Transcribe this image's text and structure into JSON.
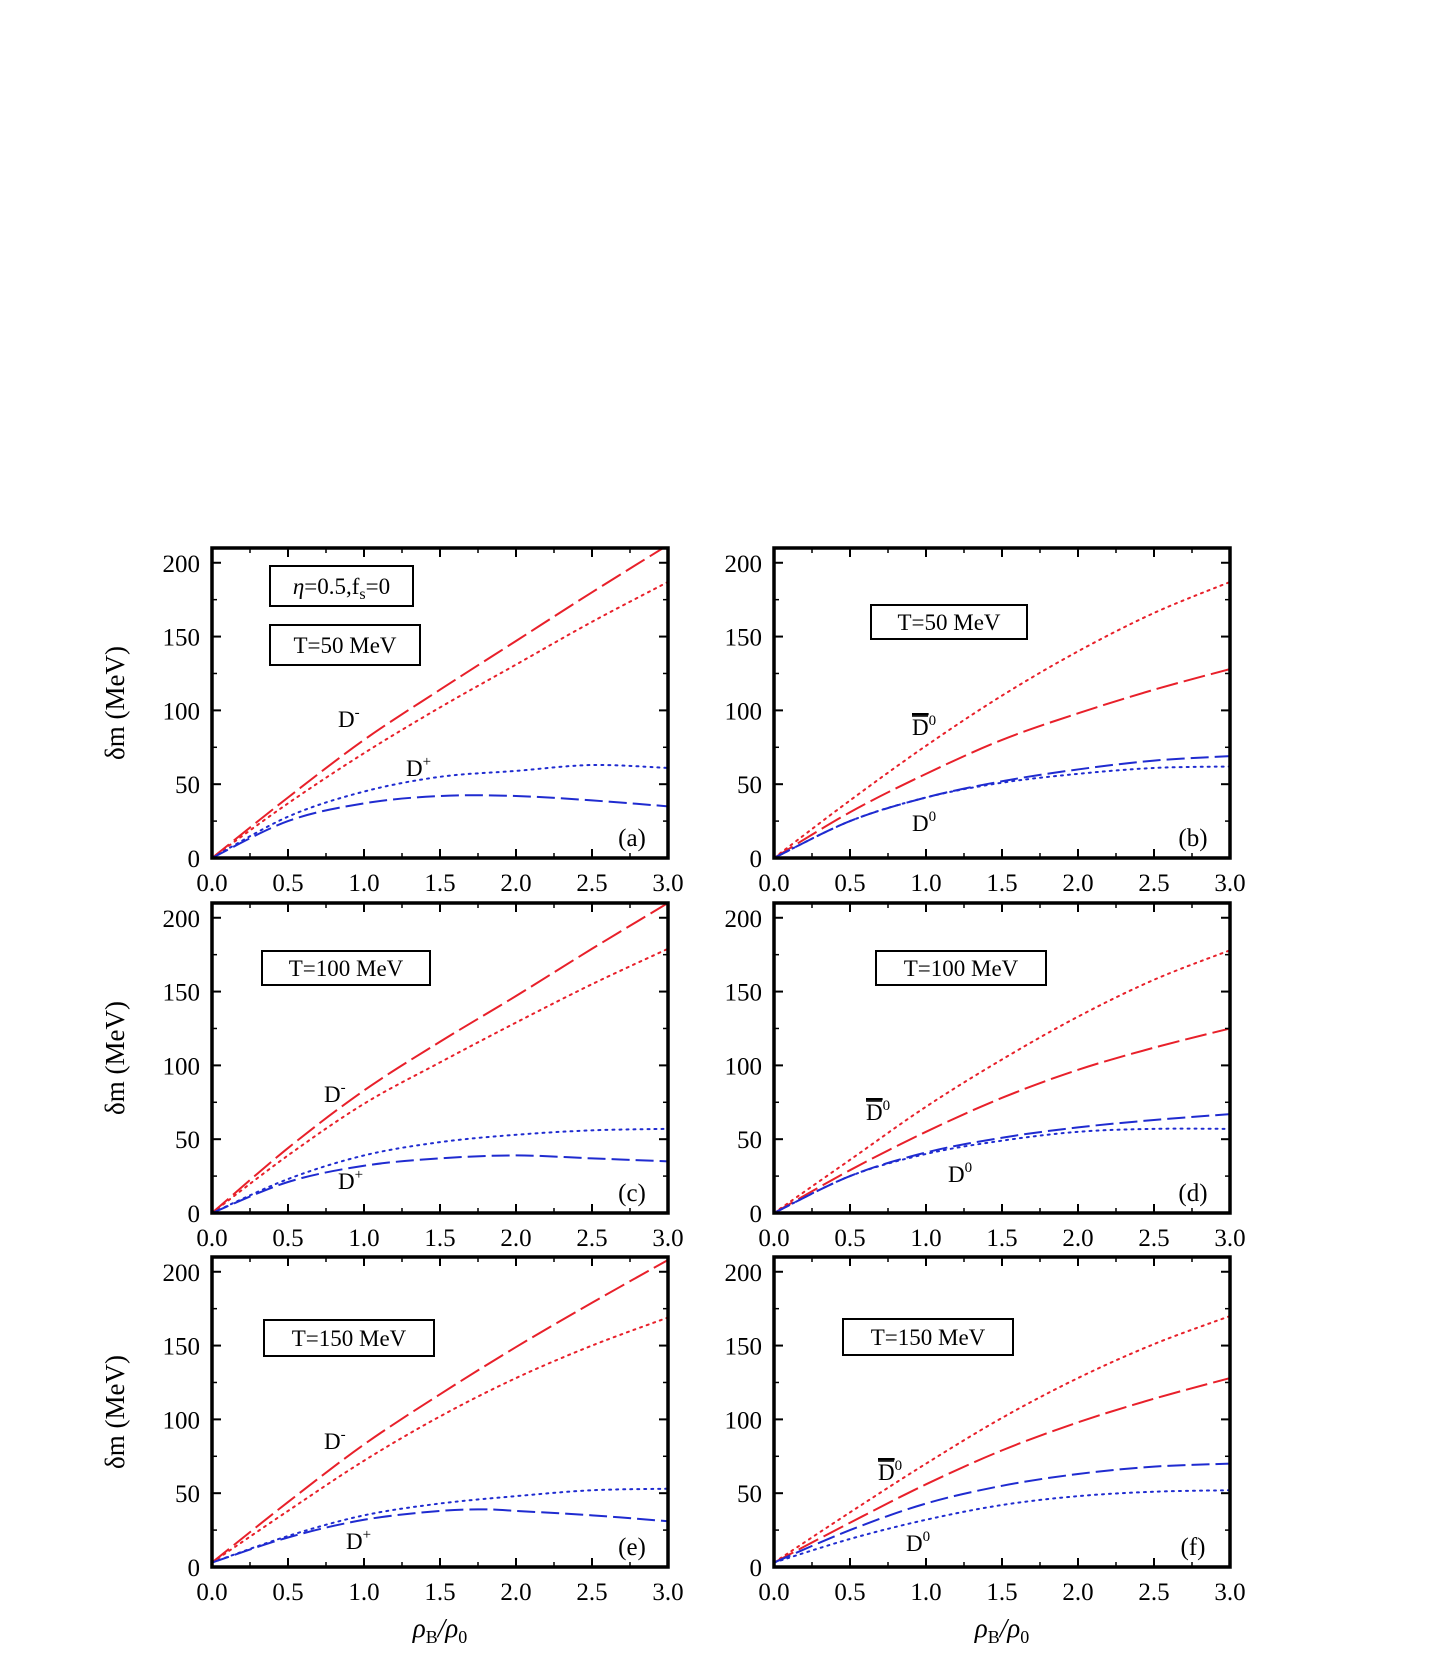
{
  "figure": {
    "colors": {
      "red": "#e8202a",
      "blue": "#1f2bd0",
      "frame": "#000000"
    },
    "ylabel_text": "δm (MeV)",
    "xlabel_text": "ρB/ρ0"
  },
  "chart_data": [
    {
      "id": "a",
      "type": "line",
      "panel_label": "(a)",
      "xlim": [
        0,
        3
      ],
      "ylim": [
        0,
        210
      ],
      "xticks": [
        "0.0",
        "0.5",
        "1.0",
        "1.5",
        "2.0",
        "2.5",
        "3.0"
      ],
      "yticks": [
        "0",
        "50",
        "100",
        "150",
        "200"
      ],
      "ylabel": "δm (MeV)",
      "xlabel": "",
      "annotations": [
        "η=0.5,fs=0",
        "T=50 MeV"
      ],
      "curve_labels": [
        {
          "text": "D-",
          "near": "red"
        },
        {
          "text": "D+",
          "near": "blue"
        }
      ],
      "series": [
        {
          "color": "red",
          "style": "dashed",
          "x": [
            0,
            0.5,
            1,
            1.5,
            2,
            2.5,
            3
          ],
          "y": [
            0,
            41,
            80,
            114,
            147,
            180,
            212
          ]
        },
        {
          "color": "red",
          "style": "dotted",
          "x": [
            0,
            0.5,
            1,
            1.5,
            2,
            2.5,
            3
          ],
          "y": [
            0,
            37,
            71,
            102,
            131,
            160,
            187
          ]
        },
        {
          "color": "blue",
          "style": "dotted",
          "x": [
            0,
            0.5,
            1,
            1.5,
            2,
            2.5,
            3
          ],
          "y": [
            0,
            28,
            45,
            55,
            59,
            63,
            61
          ]
        },
        {
          "color": "blue",
          "style": "dashed",
          "x": [
            0,
            0.5,
            1,
            1.5,
            2,
            2.5,
            3
          ],
          "y": [
            0,
            25,
            37,
            42,
            42,
            39,
            35
          ]
        }
      ]
    },
    {
      "id": "b",
      "type": "line",
      "panel_label": "(b)",
      "xlim": [
        0,
        3
      ],
      "ylim": [
        0,
        210
      ],
      "xticks": [
        "0.0",
        "0.5",
        "1.0",
        "1.5",
        "2.0",
        "2.5",
        "3.0"
      ],
      "yticks": [
        "0",
        "50",
        "100",
        "150",
        "200"
      ],
      "ylabel": "",
      "xlabel": "",
      "annotations": [
        "T=50 MeV"
      ],
      "curve_labels": [
        {
          "text": "D̄0",
          "near": "red"
        },
        {
          "text": "D0",
          "near": "blue"
        }
      ],
      "series": [
        {
          "color": "red",
          "style": "dotted",
          "x": [
            0,
            0.5,
            1,
            1.5,
            2,
            2.5,
            3
          ],
          "y": [
            0,
            39,
            76,
            110,
            140,
            166,
            187
          ]
        },
        {
          "color": "red",
          "style": "dashed",
          "x": [
            0,
            0.5,
            1,
            1.5,
            2,
            2.5,
            3
          ],
          "y": [
            0,
            31,
            57,
            80,
            98,
            114,
            128
          ]
        },
        {
          "color": "blue",
          "style": "dashed",
          "x": [
            0,
            0.5,
            1,
            1.5,
            2,
            2.5,
            3
          ],
          "y": [
            0,
            25,
            41,
            52,
            60,
            66,
            69
          ]
        },
        {
          "color": "blue",
          "style": "dotted",
          "x": [
            0,
            0.5,
            1,
            1.5,
            2,
            2.5,
            3
          ],
          "y": [
            0,
            25,
            41,
            51,
            57,
            61,
            62
          ]
        }
      ]
    },
    {
      "id": "c",
      "type": "line",
      "panel_label": "(c)",
      "xlim": [
        0,
        3
      ],
      "ylim": [
        0,
        210
      ],
      "xticks": [
        "0.0",
        "0.5",
        "1.0",
        "1.5",
        "2.0",
        "2.5",
        "3.0"
      ],
      "yticks": [
        "0",
        "50",
        "100",
        "150",
        "200"
      ],
      "ylabel": "δm (MeV)",
      "xlabel": "",
      "annotations": [
        "T=100 MeV"
      ],
      "curve_labels": [
        {
          "text": "D-",
          "near": "red"
        },
        {
          "text": "D+",
          "near": "blue"
        }
      ],
      "series": [
        {
          "color": "red",
          "style": "dashed",
          "x": [
            0,
            0.5,
            1,
            1.5,
            2,
            2.5,
            3
          ],
          "y": [
            0,
            44,
            83,
            116,
            147,
            179,
            210
          ]
        },
        {
          "color": "red",
          "style": "dotted",
          "x": [
            0,
            0.5,
            1,
            1.5,
            2,
            2.5,
            3
          ],
          "y": [
            0,
            39,
            74,
            102,
            129,
            155,
            179
          ]
        },
        {
          "color": "blue",
          "style": "dotted",
          "x": [
            0,
            0.5,
            1,
            1.5,
            2,
            2.5,
            3
          ],
          "y": [
            0,
            23,
            39,
            48,
            53,
            56,
            57
          ]
        },
        {
          "color": "blue",
          "style": "dashed",
          "x": [
            0,
            0.5,
            1,
            1.5,
            2,
            2.5,
            3
          ],
          "y": [
            0,
            21,
            32,
            37,
            39,
            37,
            35
          ]
        }
      ]
    },
    {
      "id": "d",
      "type": "line",
      "panel_label": "(d)",
      "xlim": [
        0,
        3
      ],
      "ylim": [
        0,
        210
      ],
      "xticks": [
        "0.0",
        "0.5",
        "1.0",
        "1.5",
        "2.0",
        "2.5",
        "3.0"
      ],
      "yticks": [
        "0",
        "50",
        "100",
        "150",
        "200"
      ],
      "ylabel": "",
      "xlabel": "",
      "annotations": [
        "T=100 MeV"
      ],
      "curve_labels": [
        {
          "text": "D̄0",
          "near": "red"
        },
        {
          "text": "D0",
          "near": "blue"
        }
      ],
      "series": [
        {
          "color": "red",
          "style": "dotted",
          "x": [
            0,
            0.5,
            1,
            1.5,
            2,
            2.5,
            3
          ],
          "y": [
            0,
            36,
            72,
            104,
            133,
            158,
            178
          ]
        },
        {
          "color": "red",
          "style": "dashed",
          "x": [
            0,
            0.5,
            1,
            1.5,
            2,
            2.5,
            3
          ],
          "y": [
            0,
            29,
            55,
            78,
            97,
            112,
            125
          ]
        },
        {
          "color": "blue",
          "style": "dashed",
          "x": [
            0,
            0.5,
            1,
            1.5,
            2,
            2.5,
            3
          ],
          "y": [
            0,
            25,
            41,
            51,
            58,
            63,
            67
          ]
        },
        {
          "color": "blue",
          "style": "dotted",
          "x": [
            0,
            0.5,
            1,
            1.5,
            2,
            2.5,
            3
          ],
          "y": [
            0,
            25,
            40,
            49,
            55,
            57,
            57
          ]
        }
      ]
    },
    {
      "id": "e",
      "type": "line",
      "panel_label": "(e)",
      "xlim": [
        0,
        3
      ],
      "ylim": [
        0,
        210
      ],
      "xticks": [
        "0.0",
        "0.5",
        "1.0",
        "1.5",
        "2.0",
        "2.5",
        "3.0"
      ],
      "yticks": [
        "0",
        "50",
        "100",
        "150",
        "200"
      ],
      "ylabel": "δm (MeV)",
      "xlabel": "ρB/ρ0",
      "annotations": [
        "T=150 MeV"
      ],
      "curve_labels": [
        {
          "text": "D-",
          "near": "red"
        },
        {
          "text": "D+",
          "near": "blue"
        }
      ],
      "series": [
        {
          "color": "red",
          "style": "dashed",
          "x": [
            0,
            0.5,
            1,
            1.5,
            2,
            2.5,
            3
          ],
          "y": [
            3,
            44,
            83,
            117,
            149,
            179,
            208
          ]
        },
        {
          "color": "red",
          "style": "dotted",
          "x": [
            0,
            0.5,
            1,
            1.5,
            2,
            2.5,
            3
          ],
          "y": [
            3,
            38,
            72,
            102,
            128,
            150,
            169
          ]
        },
        {
          "color": "blue",
          "style": "dotted",
          "x": [
            0,
            0.5,
            1,
            1.5,
            2,
            2.5,
            3
          ],
          "y": [
            3,
            21,
            35,
            43,
            48,
            52,
            53
          ]
        },
        {
          "color": "blue",
          "style": "dashed",
          "x": [
            0,
            0.5,
            1,
            1.5,
            1.8,
            2,
            2.5,
            3
          ],
          "y": [
            3,
            20,
            32,
            38,
            39,
            38,
            35,
            31
          ]
        }
      ]
    },
    {
      "id": "f",
      "type": "line",
      "panel_label": "(f)",
      "xlim": [
        0,
        3
      ],
      "ylim": [
        0,
        210
      ],
      "xticks": [
        "0.0",
        "0.5",
        "1.0",
        "1.5",
        "2.0",
        "2.5",
        "3.0"
      ],
      "yticks": [
        "0",
        "50",
        "100",
        "150",
        "200"
      ],
      "ylabel": "",
      "xlabel": "ρB/ρ0",
      "annotations": [
        "T=150 MeV"
      ],
      "curve_labels": [
        {
          "text": "D̄0",
          "near": "red"
        },
        {
          "text": "D0",
          "near": "blue"
        }
      ],
      "series": [
        {
          "color": "red",
          "style": "dotted",
          "x": [
            0,
            0.5,
            1,
            1.5,
            2,
            2.5,
            3
          ],
          "y": [
            3,
            37,
            70,
            101,
            128,
            151,
            170
          ]
        },
        {
          "color": "red",
          "style": "dashed",
          "x": [
            0,
            0.5,
            1,
            1.5,
            2,
            2.5,
            3
          ],
          "y": [
            3,
            30,
            56,
            79,
            98,
            114,
            128
          ]
        },
        {
          "color": "blue",
          "style": "dashed",
          "x": [
            0,
            0.5,
            1,
            1.5,
            2,
            2.5,
            3
          ],
          "y": [
            3,
            25,
            43,
            55,
            63,
            68,
            70
          ]
        },
        {
          "color": "blue",
          "style": "dotted",
          "x": [
            0,
            0.5,
            1,
            1.5,
            2,
            2.5,
            3
          ],
          "y": [
            3,
            19,
            32,
            42,
            48,
            51,
            52
          ]
        }
      ]
    }
  ]
}
